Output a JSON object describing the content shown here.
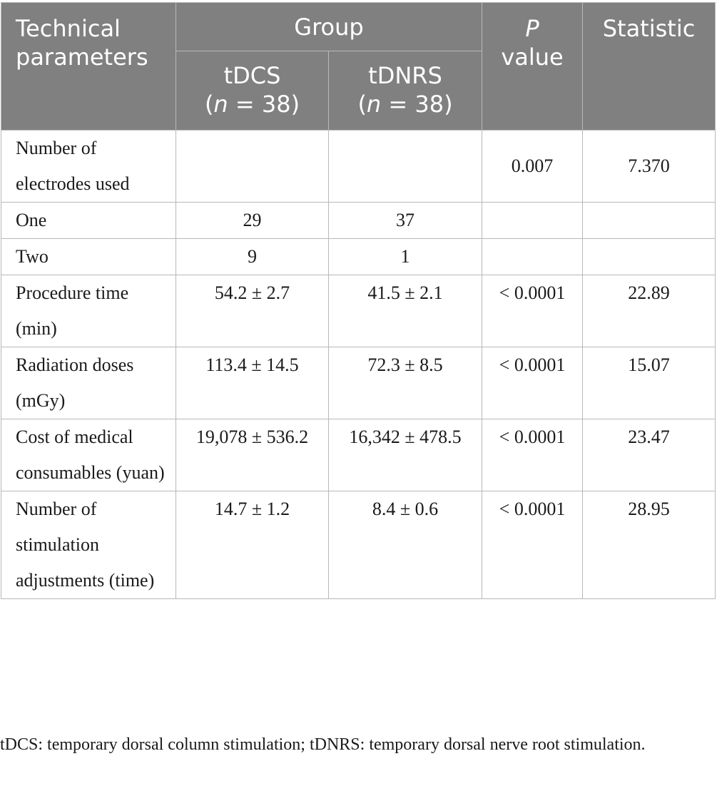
{
  "table": {
    "header": {
      "col1": "Technical parameters",
      "group": "Group",
      "tdcs": "tDCS",
      "tdcs_n_label": "n",
      "tdcs_n_value": " = 38)",
      "tdnrs": "tDNRS",
      "tdnrs_n_label": "n",
      "tdnrs_n_value": " = 38)",
      "p_italic": "P",
      "p_rest": "value",
      "statistic": "Statistic"
    },
    "rows": [
      {
        "label": "Number of electrodes used",
        "tdcs": "",
        "tdnrs": "",
        "p": "0.007",
        "stat": "7.370"
      },
      {
        "label": "One",
        "tdcs": "29",
        "tdnrs": "37",
        "p": "",
        "stat": ""
      },
      {
        "label": "Two",
        "tdcs": "9",
        "tdnrs": "1",
        "p": "",
        "stat": ""
      },
      {
        "label": "Procedure time (min)",
        "tdcs": "54.2 ± 2.7",
        "tdnrs": "41.5 ± 2.1",
        "p": "< 0.0001",
        "stat": "22.89"
      },
      {
        "label": "Radiation doses (mGy)",
        "tdcs": "113.4 ± 14.5",
        "tdnrs": "72.3 ± 8.5",
        "p": "< 0.0001",
        "stat": "15.07"
      },
      {
        "label": "Cost of medical consumables (yuan)",
        "tdcs": "19,078 ± 536.2",
        "tdnrs": "16,342 ± 478.5",
        "p": "< 0.0001",
        "stat": "23.47"
      },
      {
        "label": "Number of stimulation adjustments (time)",
        "tdcs": "14.7 ± 1.2",
        "tdnrs": "8.4 ± 0.6",
        "p": "< 0.0001",
        "stat": "28.95"
      }
    ]
  },
  "footnote": "tDCS: temporary dorsal column stimulation; tDNRS: temporary dorsal nerve root stimulation."
}
